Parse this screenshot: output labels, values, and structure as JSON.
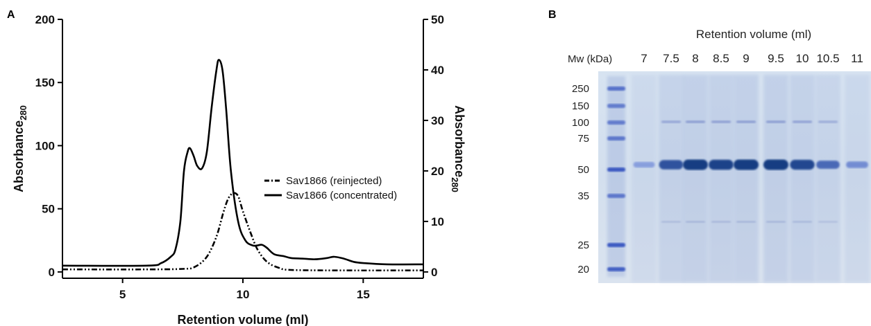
{
  "panel_a_label": "A",
  "panel_b_label": "B",
  "chart_data": [
    {
      "type": "line",
      "xlabel": "Retention volume (ml)",
      "ylabel_left": "Absorbance",
      "ylabel_left_sub": "280",
      "ylabel_right": "Absorbance",
      "ylabel_right_sub": "280",
      "xlim": [
        2.5,
        17.5
      ],
      "ylim_left": [
        -5,
        200
      ],
      "ylim_right": [
        -1.25,
        50
      ],
      "x_ticks": [
        5,
        10,
        15
      ],
      "y_left_ticks": [
        0,
        50,
        100,
        150,
        200
      ],
      "y_right_ticks": [
        0,
        10,
        20,
        30,
        40,
        50
      ],
      "legend_position": "center-right",
      "series": [
        {
          "name": "Sav1866 (reinjected)",
          "axis": "right",
          "style": "dash-dot-dot",
          "color": "#000000",
          "x": [
            2.5,
            6.0,
            7.5,
            8.0,
            8.5,
            8.9,
            9.2,
            9.4,
            9.6,
            9.8,
            10.0,
            10.3,
            10.6,
            11.0,
            11.5,
            12.0,
            14.0,
            17.5
          ],
          "y": [
            0.5,
            0.5,
            0.6,
            1.0,
            3.0,
            7.0,
            12.0,
            14.6,
            15.6,
            15.0,
            12.0,
            8.0,
            4.5,
            2.0,
            0.8,
            0.4,
            0.3,
            0.3
          ]
        },
        {
          "name": "Sav1866 (concentrated)",
          "axis": "left",
          "style": "solid",
          "color": "#000000",
          "x": [
            2.5,
            6.0,
            6.6,
            7.0,
            7.2,
            7.4,
            7.55,
            7.7,
            7.8,
            7.95,
            8.1,
            8.3,
            8.5,
            8.7,
            8.9,
            9.0,
            9.15,
            9.3,
            9.5,
            9.8,
            10.1,
            10.4,
            10.6,
            10.8,
            11.0,
            11.3,
            11.7,
            12.0,
            12.5,
            13.0,
            13.5,
            13.8,
            14.2,
            14.6,
            15.0,
            16.0,
            17.5
          ],
          "y": [
            5.0,
            5.0,
            7.0,
            12.0,
            18.0,
            40.0,
            80.0,
            95.0,
            98.0,
            92.0,
            84.0,
            82.0,
            95.0,
            130.0,
            160.0,
            168.0,
            160.0,
            130.0,
            80.0,
            40.0,
            25.0,
            21.0,
            21.0,
            21.5,
            19.0,
            14.0,
            12.5,
            11.0,
            10.5,
            10.0,
            11.0,
            12.0,
            10.5,
            8.0,
            7.0,
            6.0,
            6.0
          ]
        }
      ]
    },
    {
      "type": "gel",
      "header": "Retention volume (ml)",
      "mw_label": "Mw (kDa)",
      "lanes": [
        "7",
        "7.5",
        "8",
        "8.5",
        "9",
        "9.5",
        "10",
        "10.5",
        "11"
      ],
      "markers": [
        "250",
        "150",
        "100",
        "75",
        "50",
        "35",
        "25",
        "20"
      ],
      "band_intensity": [
        0.15,
        0.8,
        1.0,
        0.95,
        1.0,
        1.0,
        0.9,
        0.6,
        0.3
      ]
    }
  ]
}
